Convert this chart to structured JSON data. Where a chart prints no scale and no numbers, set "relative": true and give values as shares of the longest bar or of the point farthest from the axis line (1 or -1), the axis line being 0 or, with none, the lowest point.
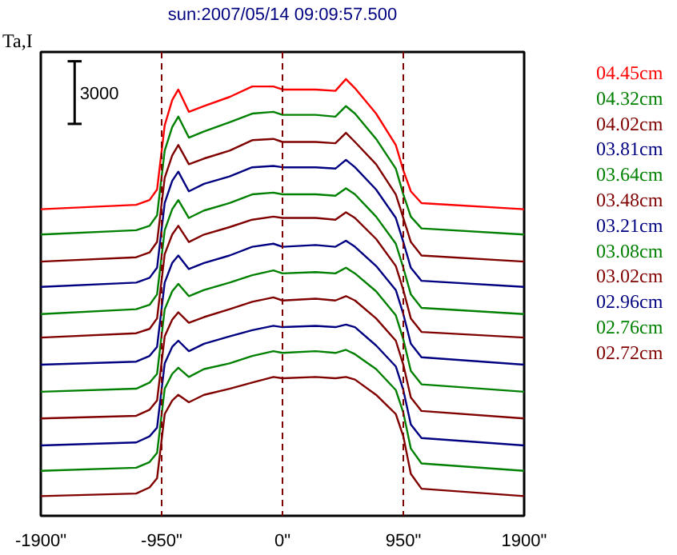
{
  "chart_data": {
    "type": "line",
    "relative": true,
    "title": "sun:2007/05/14 09:09:57.500",
    "ylabel": "Ta,I",
    "annotations": [
      "3000"
    ],
    "x": [
      -1900,
      -1150,
      -1045,
      -986,
      -926,
      -867,
      -819,
      -736,
      -617,
      -416,
      -238,
      -71,
      0,
      261,
      416,
      499,
      570,
      736,
      891,
      950,
      1009,
      1093,
      1900
    ],
    "xlim": [
      -1900,
      1900
    ],
    "xticks": [
      {
        "value": -1900,
        "label": "-1900\""
      },
      {
        "value": -950,
        "label": "-950\""
      },
      {
        "value": 0,
        "label": "0\""
      },
      {
        "value": 950,
        "label": "950\""
      },
      {
        "value": 1900,
        "label": "1900\""
      }
    ],
    "ref_lines": [
      {
        "axis": "x",
        "value": -950,
        "color": "#800000",
        "line_style": "dashed"
      },
      {
        "axis": "x",
        "value": 0,
        "color": "#800000",
        "line_style": "dashed"
      },
      {
        "axis": "x",
        "value": 950,
        "color": "#800000",
        "line_style": "dashed"
      }
    ],
    "grid": false,
    "tick_labels": "x",
    "marker": "none",
    "line_style": "solid",
    "series": [
      {
        "name": "04.45cm",
        "color": "#ff0000",
        "values": [
          0.702,
          0.712,
          0.723,
          0.747,
          0.894,
          0.952,
          0.976,
          0.925,
          0.938,
          0.959,
          0.983,
          0.983,
          0.976,
          0.976,
          0.973,
          1,
          0.979,
          0.921,
          0.849,
          0.791,
          0.743,
          0.716,
          0.702
        ]
      },
      {
        "name": "04.32cm",
        "color": "#008000",
        "values": [
          0.644,
          0.654,
          0.664,
          0.688,
          0.836,
          0.89,
          0.914,
          0.866,
          0.88,
          0.901,
          0.921,
          0.925,
          0.918,
          0.918,
          0.914,
          0.938,
          0.921,
          0.863,
          0.795,
          0.736,
          0.685,
          0.658,
          0.644
        ]
      },
      {
        "name": "04.02cm",
        "color": "#800000",
        "values": [
          0.582,
          0.592,
          0.603,
          0.627,
          0.774,
          0.825,
          0.849,
          0.805,
          0.818,
          0.836,
          0.86,
          0.863,
          0.856,
          0.856,
          0.853,
          0.877,
          0.856,
          0.805,
          0.736,
          0.682,
          0.627,
          0.596,
          0.582
        ]
      },
      {
        "name": "03.81cm",
        "color": "#000080",
        "values": [
          0.524,
          0.534,
          0.545,
          0.568,
          0.716,
          0.767,
          0.788,
          0.743,
          0.76,
          0.777,
          0.798,
          0.801,
          0.798,
          0.798,
          0.795,
          0.815,
          0.798,
          0.747,
          0.682,
          0.627,
          0.568,
          0.538,
          0.524
        ]
      },
      {
        "name": "03.64cm",
        "color": "#008000",
        "values": [
          0.462,
          0.473,
          0.483,
          0.507,
          0.654,
          0.702,
          0.723,
          0.682,
          0.699,
          0.716,
          0.736,
          0.74,
          0.736,
          0.736,
          0.733,
          0.75,
          0.736,
          0.685,
          0.623,
          0.568,
          0.507,
          0.476,
          0.462
        ]
      },
      {
        "name": "03.48cm",
        "color": "#800000",
        "values": [
          0.408,
          0.418,
          0.428,
          0.452,
          0.599,
          0.644,
          0.664,
          0.627,
          0.644,
          0.661,
          0.678,
          0.685,
          0.682,
          0.682,
          0.678,
          0.695,
          0.682,
          0.634,
          0.572,
          0.517,
          0.452,
          0.421,
          0.408
        ]
      },
      {
        "name": "03.21cm",
        "color": "#000080",
        "values": [
          0.346,
          0.353,
          0.366,
          0.387,
          0.534,
          0.579,
          0.596,
          0.565,
          0.579,
          0.596,
          0.616,
          0.623,
          0.616,
          0.62,
          0.616,
          0.63,
          0.616,
          0.572,
          0.517,
          0.462,
          0.394,
          0.363,
          0.346
        ]
      },
      {
        "name": "03.08cm",
        "color": "#008000",
        "values": [
          0.284,
          0.291,
          0.305,
          0.325,
          0.473,
          0.514,
          0.531,
          0.503,
          0.517,
          0.534,
          0.551,
          0.562,
          0.555,
          0.558,
          0.555,
          0.568,
          0.555,
          0.514,
          0.459,
          0.404,
          0.332,
          0.301,
          0.284
        ]
      },
      {
        "name": "03.02cm",
        "color": "#800000",
        "values": [
          0.223,
          0.229,
          0.243,
          0.264,
          0.411,
          0.449,
          0.466,
          0.442,
          0.455,
          0.473,
          0.49,
          0.5,
          0.493,
          0.497,
          0.493,
          0.503,
          0.493,
          0.452,
          0.401,
          0.346,
          0.271,
          0.24,
          0.223
        ]
      },
      {
        "name": "02.96cm",
        "color": "#000080",
        "values": [
          0.161,
          0.168,
          0.182,
          0.202,
          0.349,
          0.387,
          0.401,
          0.377,
          0.394,
          0.411,
          0.425,
          0.435,
          0.432,
          0.435,
          0.432,
          0.438,
          0.432,
          0.39,
          0.342,
          0.288,
          0.209,
          0.178,
          0.161
        ]
      },
      {
        "name": "02.76cm",
        "color": "#008000",
        "values": [
          0.103,
          0.11,
          0.123,
          0.144,
          0.291,
          0.325,
          0.339,
          0.318,
          0.336,
          0.349,
          0.366,
          0.377,
          0.373,
          0.377,
          0.373,
          0.38,
          0.37,
          0.336,
          0.288,
          0.236,
          0.154,
          0.12,
          0.103
        ]
      },
      {
        "name": "02.72cm",
        "color": "#800000",
        "values": [
          0.045,
          0.051,
          0.065,
          0.086,
          0.233,
          0.264,
          0.277,
          0.26,
          0.277,
          0.291,
          0.305,
          0.318,
          0.315,
          0.318,
          0.315,
          0.318,
          0.312,
          0.277,
          0.233,
          0.182,
          0.096,
          0.062,
          0.045
        ]
      }
    ]
  }
}
